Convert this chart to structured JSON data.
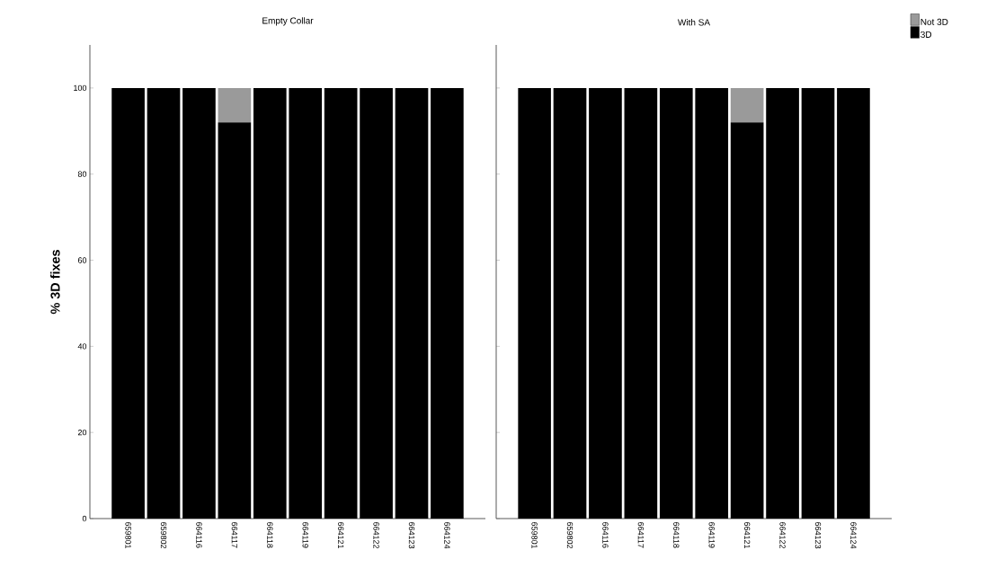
{
  "chart_data": [
    {
      "type": "bar",
      "stacked": true,
      "title": "Empty Collar",
      "ylabel": "% 3D fixes",
      "categories": [
        "659801",
        "659802",
        "664116",
        "664117",
        "664118",
        "664119",
        "664121",
        "664122",
        "664123",
        "664124"
      ],
      "series": [
        {
          "color": "#000000",
          "values": [
            100,
            100,
            100,
            92,
            100,
            100,
            100,
            100,
            100,
            100
          ]
        },
        {
          "color": "#9a9a9a",
          "values": [
            0,
            0,
            0,
            8,
            0,
            0,
            0,
            0,
            0,
            0
          ]
        }
      ],
      "ylim": [
        0,
        110
      ],
      "yticks": [
        0,
        20,
        40,
        60,
        80,
        100
      ],
      "grid": false
    },
    {
      "type": "bar",
      "stacked": true,
      "title": "With SA",
      "categories": [
        "659801",
        "659802",
        "664116",
        "664117",
        "664118",
        "664119",
        "664121",
        "664122",
        "664123",
        "664124"
      ],
      "series": [
        {
          "name": "3D",
          "color": "#000000",
          "values": [
            100,
            100,
            100,
            100,
            100,
            100,
            92,
            100,
            100,
            100
          ]
        },
        {
          "name": "Not 3D",
          "color": "#9a9a9a",
          "values": [
            0,
            0,
            0,
            0,
            0,
            0,
            8,
            0,
            0,
            0
          ]
        }
      ],
      "ylim": [
        0,
        110
      ],
      "yticks": [
        0,
        20,
        40,
        60,
        80,
        100
      ],
      "grid": false,
      "legend": "top right",
      "tick_labels": "x"
    }
  ]
}
